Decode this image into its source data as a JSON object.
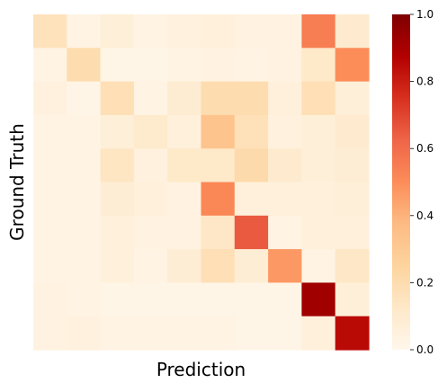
{
  "chart_data": {
    "type": "heatmap",
    "title": "",
    "xlabel": "Prediction",
    "ylabel": "Ground Truth",
    "colormap": "OrRd",
    "vmin": 0.0,
    "vmax": 1.0,
    "colorbar_ticks": [
      "0.0",
      "0.2",
      "0.4",
      "0.6",
      "0.8",
      "1.0"
    ],
    "colorbar_tick_values": [
      0.0,
      0.2,
      0.4,
      0.6,
      0.8,
      1.0
    ],
    "show_row_labels": false,
    "show_column_labels": false,
    "matrix": [
      [
        0.16,
        0.03,
        0.07,
        0.03,
        0.05,
        0.06,
        0.04,
        0.04,
        0.55,
        0.1
      ],
      [
        0.03,
        0.2,
        0.02,
        0.02,
        0.03,
        0.04,
        0.03,
        0.04,
        0.12,
        0.5
      ],
      [
        0.05,
        0.02,
        0.18,
        0.03,
        0.09,
        0.2,
        0.2,
        0.06,
        0.18,
        0.07
      ],
      [
        0.03,
        0.03,
        0.07,
        0.11,
        0.06,
        0.33,
        0.17,
        0.05,
        0.07,
        0.1
      ],
      [
        0.03,
        0.03,
        0.14,
        0.05,
        0.12,
        0.12,
        0.21,
        0.1,
        0.07,
        0.08
      ],
      [
        0.03,
        0.03,
        0.08,
        0.06,
        0.04,
        0.52,
        0.06,
        0.06,
        0.06,
        0.07
      ],
      [
        0.03,
        0.03,
        0.06,
        0.04,
        0.04,
        0.13,
        0.65,
        0.03,
        0.06,
        0.06
      ],
      [
        0.03,
        0.03,
        0.06,
        0.03,
        0.08,
        0.18,
        0.08,
        0.47,
        0.03,
        0.13
      ],
      [
        0.04,
        0.03,
        0.02,
        0.02,
        0.02,
        0.02,
        0.02,
        0.02,
        0.92,
        0.07
      ],
      [
        0.04,
        0.05,
        0.03,
        0.03,
        0.03,
        0.03,
        0.02,
        0.02,
        0.06,
        0.85
      ]
    ]
  }
}
